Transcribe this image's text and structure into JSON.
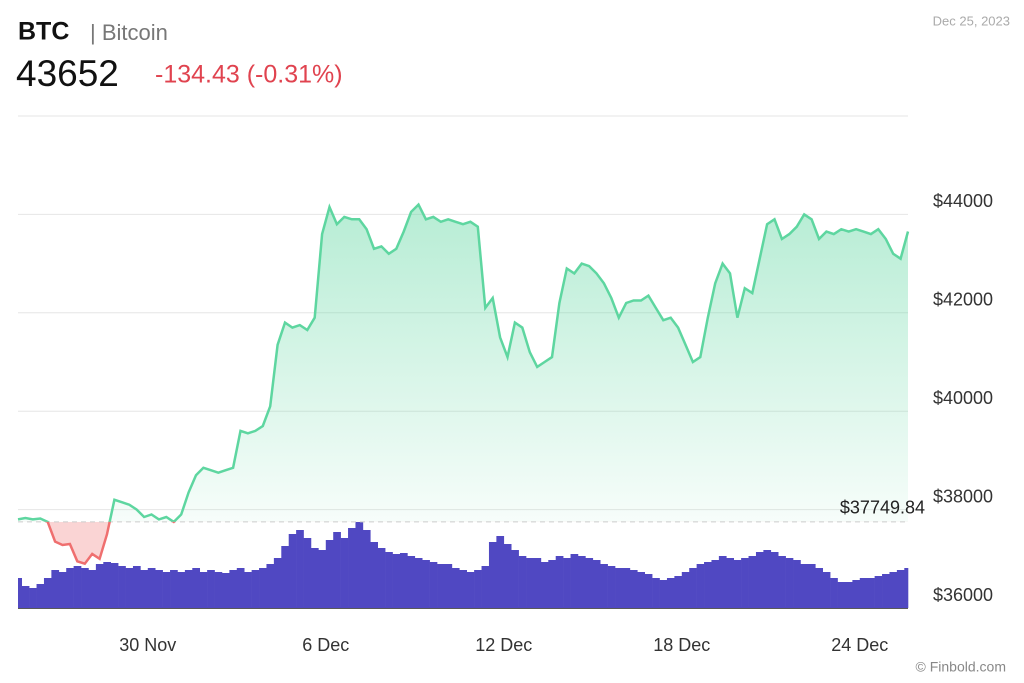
{
  "chart_data": {
    "type": "line",
    "title": "BTC",
    "subtitle": "| Bitcoin",
    "price": 43652,
    "change": "-134.43 (-0.31%)",
    "date": "Dec 25, 2023",
    "credit": "© Finbold.com",
    "reference": {
      "value": 37749.84,
      "label": "$37749.84"
    },
    "up_color": "#5ed6a0",
    "down_color": "#ef6f6f",
    "volume_color": "#5048c2",
    "grid": true,
    "xlim": [
      0,
      120
    ],
    "xticks": [
      {
        "value": 17.5,
        "label": "30 Nov"
      },
      {
        "value": 41.5,
        "label": "6 Dec"
      },
      {
        "value": 65.5,
        "label": "12 Dec"
      },
      {
        "value": 89.5,
        "label": "18 Dec"
      },
      {
        "value": 113.5,
        "label": "24 Dec"
      }
    ],
    "ylim": [
      36000,
      46000
    ],
    "yticks": [
      {
        "value": 36000,
        "label": "$36000"
      },
      {
        "value": 38000,
        "label": "$38000"
      },
      {
        "value": 40000,
        "label": "$40000"
      },
      {
        "value": 42000,
        "label": "$42000"
      },
      {
        "value": 44000,
        "label": "$44000"
      }
    ],
    "values": [
      37800,
      37830,
      37800,
      37820,
      37750,
      37350,
      37280,
      37300,
      36950,
      36900,
      37100,
      37000,
      37500,
      38200,
      38150,
      38100,
      38000,
      37850,
      37900,
      37800,
      37850,
      37750,
      37900,
      38350,
      38700,
      38850,
      38800,
      38750,
      38800,
      38850,
      39600,
      39550,
      39600,
      39700,
      40100,
      41350,
      41800,
      41700,
      41750,
      41650,
      41900,
      43600,
      44150,
      43800,
      43950,
      43900,
      43900,
      43700,
      43300,
      43350,
      43200,
      43300,
      43650,
      44050,
      44200,
      43900,
      43950,
      43850,
      43900,
      43850,
      43800,
      43850,
      43750,
      42100,
      42300,
      41500,
      41100,
      41800,
      41700,
      41200,
      40900,
      41000,
      41100,
      42200,
      42900,
      42800,
      43000,
      42950,
      42800,
      42600,
      42300,
      41900,
      42200,
      42250,
      42250,
      42350,
      42100,
      41850,
      41900,
      41700,
      41350,
      41000,
      41100,
      41900,
      42600,
      43000,
      42800,
      41900,
      42500,
      42400,
      43100,
      43800,
      43900,
      43500,
      43600,
      43750,
      44000,
      43900,
      43500,
      43650,
      43600,
      43700,
      43650,
      43700,
      43650,
      43600,
      43700,
      43500,
      43200,
      43100,
      43652
    ],
    "vlim": [
      0,
      100
    ],
    "volume": [
      30,
      22,
      20,
      24,
      30,
      38,
      36,
      40,
      42,
      40,
      38,
      44,
      46,
      45,
      42,
      40,
      42,
      38,
      40,
      38,
      36,
      38,
      36,
      38,
      40,
      36,
      38,
      36,
      35,
      38,
      40,
      36,
      38,
      40,
      44,
      50,
      62,
      74,
      78,
      70,
      60,
      58,
      68,
      76,
      70,
      80,
      86,
      78,
      66,
      60,
      56,
      54,
      55,
      52,
      50,
      48,
      46,
      44,
      44,
      40,
      38,
      36,
      38,
      42,
      66,
      72,
      64,
      58,
      52,
      50,
      50,
      46,
      48,
      52,
      50,
      54,
      52,
      50,
      48,
      44,
      42,
      40,
      40,
      38,
      36,
      34,
      30,
      28,
      30,
      32,
      36,
      40,
      44,
      46,
      48,
      52,
      50,
      48,
      50,
      52,
      56,
      58,
      56,
      52,
      50,
      48,
      44,
      44,
      40,
      36,
      30,
      26,
      26,
      28,
      30,
      30,
      32,
      34,
      36,
      38,
      40
    ]
  }
}
